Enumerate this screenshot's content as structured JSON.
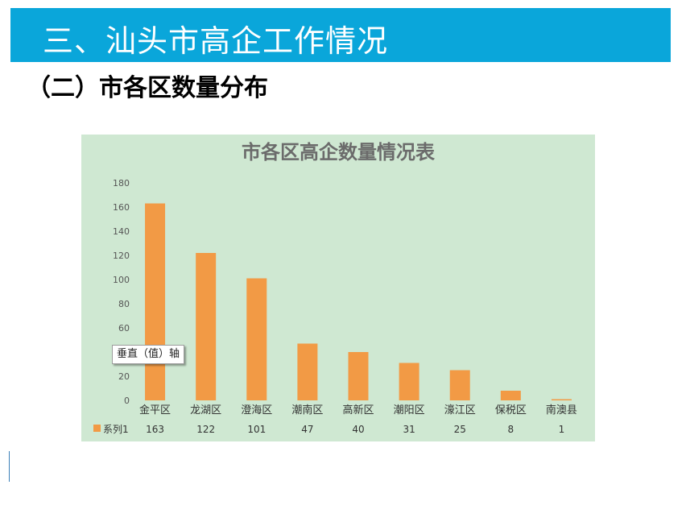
{
  "page": {
    "title": "三、汕头市高企工作情况",
    "subtitle": "（二）市各区数量分布",
    "tooltip": "垂直（值）轴"
  },
  "colors": {
    "title_bar": "#0aa6da",
    "chart_bg": "#cfe8d2",
    "bar": "#f29a45",
    "chart_title": "#6b6b6b"
  },
  "chart_data": {
    "type": "bar",
    "title": "市各区高企数量情况表",
    "categories": [
      "金平区",
      "龙湖区",
      "澄海区",
      "潮南区",
      "高新区",
      "潮阳区",
      "濠江区",
      "保税区",
      "南澳县"
    ],
    "series": [
      {
        "name": "系列1",
        "values": [
          163,
          122,
          101,
          47,
          40,
          31,
          25,
          8,
          1
        ]
      }
    ],
    "ylim": [
      0,
      180
    ],
    "yticks": [
      0,
      20,
      40,
      60,
      80,
      100,
      120,
      140,
      160,
      180
    ],
    "grid": false,
    "legend": "data-table-bottom",
    "data_table": true
  }
}
